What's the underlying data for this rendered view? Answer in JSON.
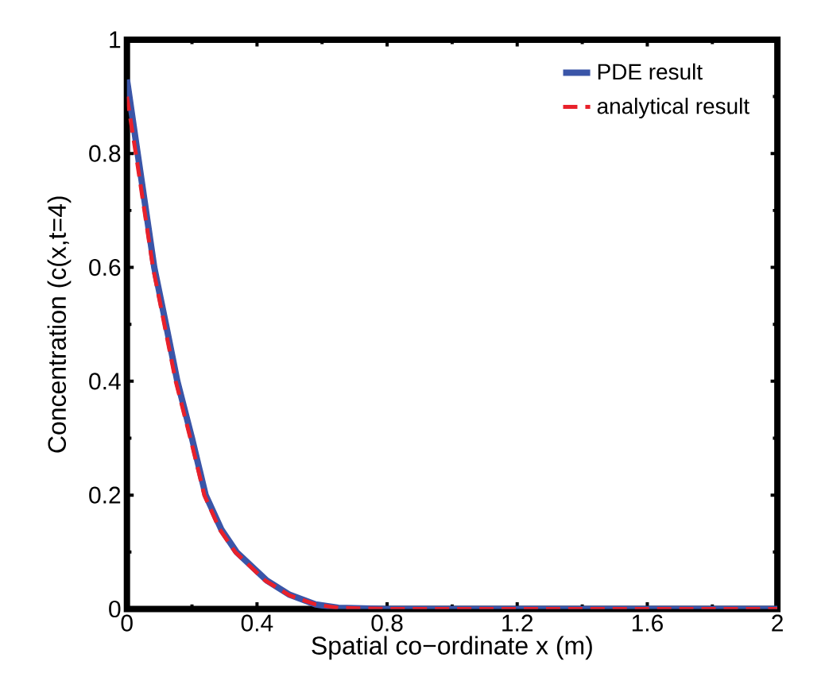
{
  "chart_data": {
    "type": "line",
    "xlabel": "Spatial co−ordinate x (m)",
    "ylabel": "Concentration (c(x,t=4)",
    "xlim": [
      0,
      2
    ],
    "ylim": [
      0,
      1
    ],
    "xticks": [
      0,
      0.4,
      0.8,
      1.2,
      1.6,
      2
    ],
    "yticks": [
      0,
      0.2,
      0.4,
      0.6,
      0.8,
      1
    ],
    "legend": "top right",
    "grid": false,
    "series": [
      {
        "name": "PDE result",
        "color": "#3a55a8",
        "line_style": "solid",
        "x": [
          0,
          0.033,
          0.084,
          0.12,
          0.155,
          0.2,
          0.242,
          0.29,
          0.337,
          0.43,
          0.5,
          0.58,
          0.65,
          0.8,
          1.0,
          1.4,
          2.0
        ],
        "values": [
          0.93,
          0.8,
          0.6,
          0.5,
          0.4,
          0.3,
          0.2,
          0.14,
          0.1,
          0.05,
          0.025,
          0.008,
          0.002,
          0,
          0,
          0,
          0
        ]
      },
      {
        "name": "analytical result",
        "color": "#e8212b",
        "line_style": "dashed",
        "x": [
          0,
          0.03,
          0.08,
          0.115,
          0.15,
          0.195,
          0.238,
          0.285,
          0.333,
          0.425,
          0.5,
          0.58,
          0.65,
          0.8,
          1.0,
          1.4,
          2.0
        ],
        "values": [
          0.9,
          0.79,
          0.6,
          0.5,
          0.4,
          0.3,
          0.2,
          0.14,
          0.1,
          0.05,
          0.024,
          0.008,
          0.002,
          0,
          0,
          0,
          0
        ]
      }
    ]
  }
}
